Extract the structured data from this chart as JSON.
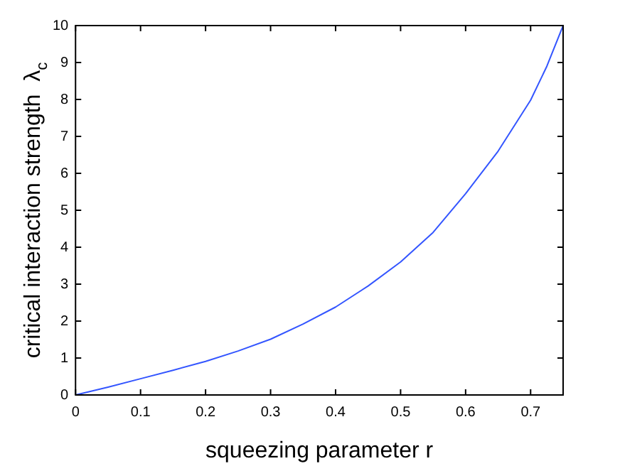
{
  "chart_data": {
    "type": "line",
    "xlabel": "squeezing parameter r",
    "ylabel": "critical interaction strength  λ$_{c}$",
    "x": [
      0,
      0.05,
      0.1,
      0.15,
      0.2,
      0.25,
      0.3,
      0.35,
      0.4,
      0.45,
      0.5,
      0.55,
      0.6,
      0.65,
      0.7,
      0.725,
      0.75
    ],
    "series": [
      {
        "color": "#3355ff",
        "values": [
          0,
          0.21,
          0.44,
          0.67,
          0.91,
          1.19,
          1.51,
          1.92,
          2.38,
          2.95,
          3.6,
          4.4,
          5.45,
          6.6,
          7.98,
          8.9,
          10
        ]
      }
    ],
    "xlim": [
      0,
      0.75
    ],
    "xticks": [
      0,
      0.1,
      0.2,
      0.3,
      0.4,
      0.5,
      0.6,
      0.7
    ],
    "ylim": [
      0,
      10
    ],
    "yticks": [
      0,
      1,
      2,
      3,
      4,
      5,
      6,
      7,
      8,
      9,
      10
    ],
    "grid": false,
    "legend": false,
    "marker": "none",
    "line_style": "solid"
  }
}
